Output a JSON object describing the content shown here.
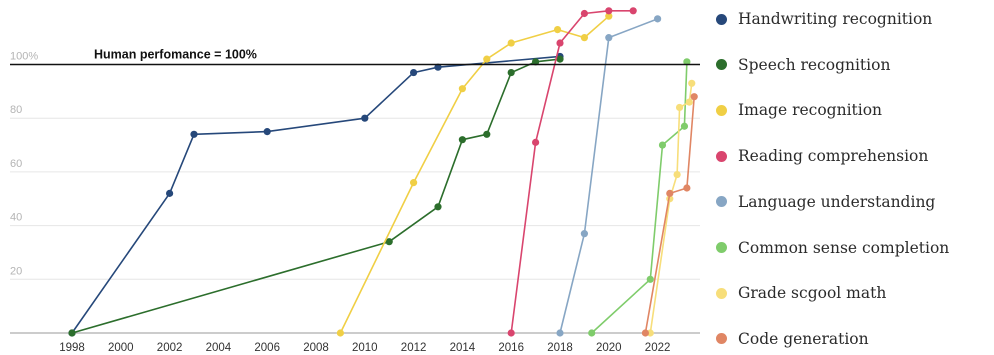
{
  "chart_data": {
    "type": "line",
    "title": "",
    "xlabel": "",
    "ylabel": "",
    "xlim": [
      1998,
      2023.5
    ],
    "ylim": [
      0,
      125
    ],
    "x_ticks": [
      "1998",
      "2000",
      "2002",
      "2004",
      "2006",
      "2008",
      "2010",
      "2012",
      "2014",
      "2016",
      "2018",
      "2020",
      "2022"
    ],
    "y_ticks": [
      "100%",
      "80",
      "60",
      "40",
      "20"
    ],
    "grid": "horizontal",
    "reference_line": {
      "label": "Human perfomance = 100%",
      "value": 100
    },
    "legend_position": "right",
    "series": [
      {
        "name": "Handwriting recognition",
        "color": "#26487a",
        "points": [
          [
            1998,
            0
          ],
          [
            2002,
            52
          ],
          [
            2003,
            74
          ],
          [
            2006,
            75
          ],
          [
            2010,
            80
          ],
          [
            2012,
            97
          ],
          [
            2013,
            99
          ],
          [
            2018,
            103
          ]
        ]
      },
      {
        "name": "Speech recognition",
        "color": "#2c6e2c",
        "points": [
          [
            1998,
            0
          ],
          [
            2011,
            34
          ],
          [
            2013,
            47
          ],
          [
            2014,
            72
          ],
          [
            2015,
            74
          ],
          [
            2016,
            97
          ],
          [
            2017,
            101
          ],
          [
            2018,
            102
          ]
        ]
      },
      {
        "name": "Image recognition",
        "color": "#f0cf45",
        "points": [
          [
            2009,
            0
          ],
          [
            2012,
            56
          ],
          [
            2014,
            91
          ],
          [
            2015,
            102
          ],
          [
            2016,
            108
          ],
          [
            2017.9,
            113
          ],
          [
            2019,
            110
          ],
          [
            2020,
            118
          ]
        ]
      },
      {
        "name": "Reading comprehension",
        "color": "#d9456e",
        "points": [
          [
            2016,
            0
          ],
          [
            2017,
            71
          ],
          [
            2018,
            108
          ],
          [
            2019,
            119
          ],
          [
            2020,
            120
          ],
          [
            2021,
            120
          ]
        ]
      },
      {
        "name": "Language understanding",
        "color": "#87a6c4",
        "points": [
          [
            2018,
            0
          ],
          [
            2019,
            37
          ],
          [
            2020,
            110
          ],
          [
            2022,
            117
          ]
        ]
      },
      {
        "name": "Common sense completion",
        "color": "#7fcc6b",
        "points": [
          [
            2019.3,
            0
          ],
          [
            2021.7,
            20
          ],
          [
            2022.2,
            70
          ],
          [
            2023.1,
            77
          ],
          [
            2023.2,
            101
          ]
        ]
      },
      {
        "name": "Grade scgool math",
        "color": "#f7de7a",
        "points": [
          [
            2021.7,
            0
          ],
          [
            2022.5,
            50
          ],
          [
            2022.8,
            59
          ],
          [
            2022.9,
            84
          ],
          [
            2023.3,
            86
          ],
          [
            2023.4,
            93
          ]
        ]
      },
      {
        "name": "Code generation",
        "color": "#e08664",
        "points": [
          [
            2021.5,
            0
          ],
          [
            2022.5,
            52
          ],
          [
            2023.2,
            54
          ],
          [
            2023.5,
            88
          ]
        ]
      }
    ]
  }
}
